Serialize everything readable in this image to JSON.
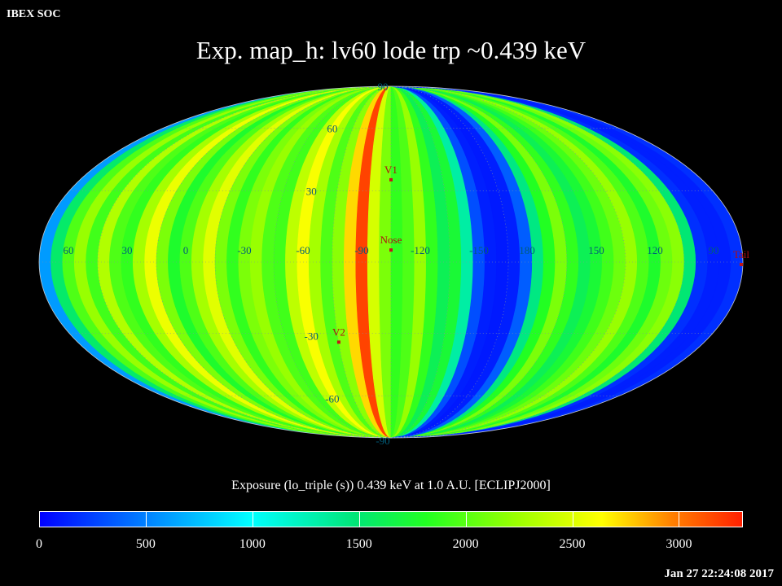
{
  "header": {
    "source": "IBEX SOC",
    "timestamp": "Jan 27 22:24:08 2017"
  },
  "chart_data": {
    "type": "heatmap",
    "projection": "mollweide",
    "title": "Exp.   map_h: lv60 lode trp ~0.439 keV",
    "colorbar": {
      "title": "Exposure (lo_triple (s))  0.439 keV at 1.0 A.U. [ECLIPJ2000]",
      "min": 0,
      "max": 3300,
      "ticks": [
        "0",
        "500",
        "1000",
        "1500",
        "2000",
        "2500",
        "3000"
      ],
      "colormap": [
        "#0000ff",
        "#0080ff",
        "#00ffff",
        "#00e676",
        "#22ff22",
        "#9cff00",
        "#ffff00",
        "#ff8000",
        "#ff2000"
      ]
    },
    "longitude_labels": [
      "60",
      "30",
      "0",
      "-30",
      "-60",
      "-90",
      "-120",
      "-150",
      "180",
      "150",
      "120",
      "90"
    ],
    "latitude_labels": [
      "90",
      "60",
      "30",
      "-30",
      "-60",
      "-90"
    ],
    "markers": [
      {
        "name": "Nose",
        "lon": -105,
        "lat": 5
      },
      {
        "name": "V1",
        "lon": -105,
        "lat": 35
      },
      {
        "name": "V2",
        "lon": -75,
        "lat": -34
      },
      {
        "name": "Tail",
        "lon": 75,
        "lat": -5
      }
    ],
    "strips": [
      {
        "lon": 180,
        "value": 1200
      },
      {
        "lon": 174,
        "value": 1650
      },
      {
        "lon": 168,
        "value": 1950
      },
      {
        "lon": 162,
        "value": 1700
      },
      {
        "lon": 156,
        "value": 1400
      },
      {
        "lon": 150,
        "value": 1550
      },
      {
        "lon": 144,
        "value": 1750
      },
      {
        "lon": 138,
        "value": 1900
      },
      {
        "lon": 132,
        "value": 2050
      },
      {
        "lon": 126,
        "value": 1800
      },
      {
        "lon": 120,
        "value": 1600
      },
      {
        "lon": 114,
        "value": 1900
      },
      {
        "lon": 108,
        "value": 2000
      },
      {
        "lon": 102,
        "value": 1250
      },
      {
        "lon": 96,
        "value": 150
      },
      {
        "lon": 90,
        "value": 100
      },
      {
        "lon": 84,
        "value": 100
      },
      {
        "lon": 78,
        "value": 150
      },
      {
        "lon": 72,
        "value": 500
      },
      {
        "lon": 66,
        "value": 1300
      },
      {
        "lon": 60,
        "value": 1800
      },
      {
        "lon": 54,
        "value": 2050
      },
      {
        "lon": 48,
        "value": 1750
      },
      {
        "lon": 42,
        "value": 2150
      },
      {
        "lon": 36,
        "value": 1800
      },
      {
        "lon": 30,
        "value": 1700
      },
      {
        "lon": 24,
        "value": 2100
      },
      {
        "lon": 18,
        "value": 2400
      },
      {
        "lon": 12,
        "value": 1950
      },
      {
        "lon": 6,
        "value": 1600
      },
      {
        "lon": 0,
        "value": 1800
      },
      {
        "lon": -6,
        "value": 2100
      },
      {
        "lon": -12,
        "value": 2350
      },
      {
        "lon": -18,
        "value": 1950
      },
      {
        "lon": -24,
        "value": 1700
      },
      {
        "lon": -30,
        "value": 1950
      },
      {
        "lon": -36,
        "value": 2050
      },
      {
        "lon": -42,
        "value": 1800
      },
      {
        "lon": -48,
        "value": 1750
      },
      {
        "lon": -54,
        "value": 2200
      },
      {
        "lon": -60,
        "value": 2450
      },
      {
        "lon": -66,
        "value": 2100
      },
      {
        "lon": -72,
        "value": 1800
      },
      {
        "lon": -78,
        "value": 2000
      },
      {
        "lon": -84,
        "value": 2600
      },
      {
        "lon": -90,
        "value": 3150
      },
      {
        "lon": -96,
        "value": 2300
      },
      {
        "lon": -102,
        "value": 1950
      },
      {
        "lon": -108,
        "value": 1700
      },
      {
        "lon": -114,
        "value": 1800
      },
      {
        "lon": -120,
        "value": 2050
      },
      {
        "lon": -126,
        "value": 1700
      },
      {
        "lon": -132,
        "value": 1400
      },
      {
        "lon": -138,
        "value": 1550
      },
      {
        "lon": -144,
        "value": 1100
      },
      {
        "lon": -150,
        "value": 250
      },
      {
        "lon": -156,
        "value": 100
      },
      {
        "lon": -162,
        "value": 80
      },
      {
        "lon": -168,
        "value": 100
      },
      {
        "lon": -174,
        "value": 300
      }
    ]
  }
}
